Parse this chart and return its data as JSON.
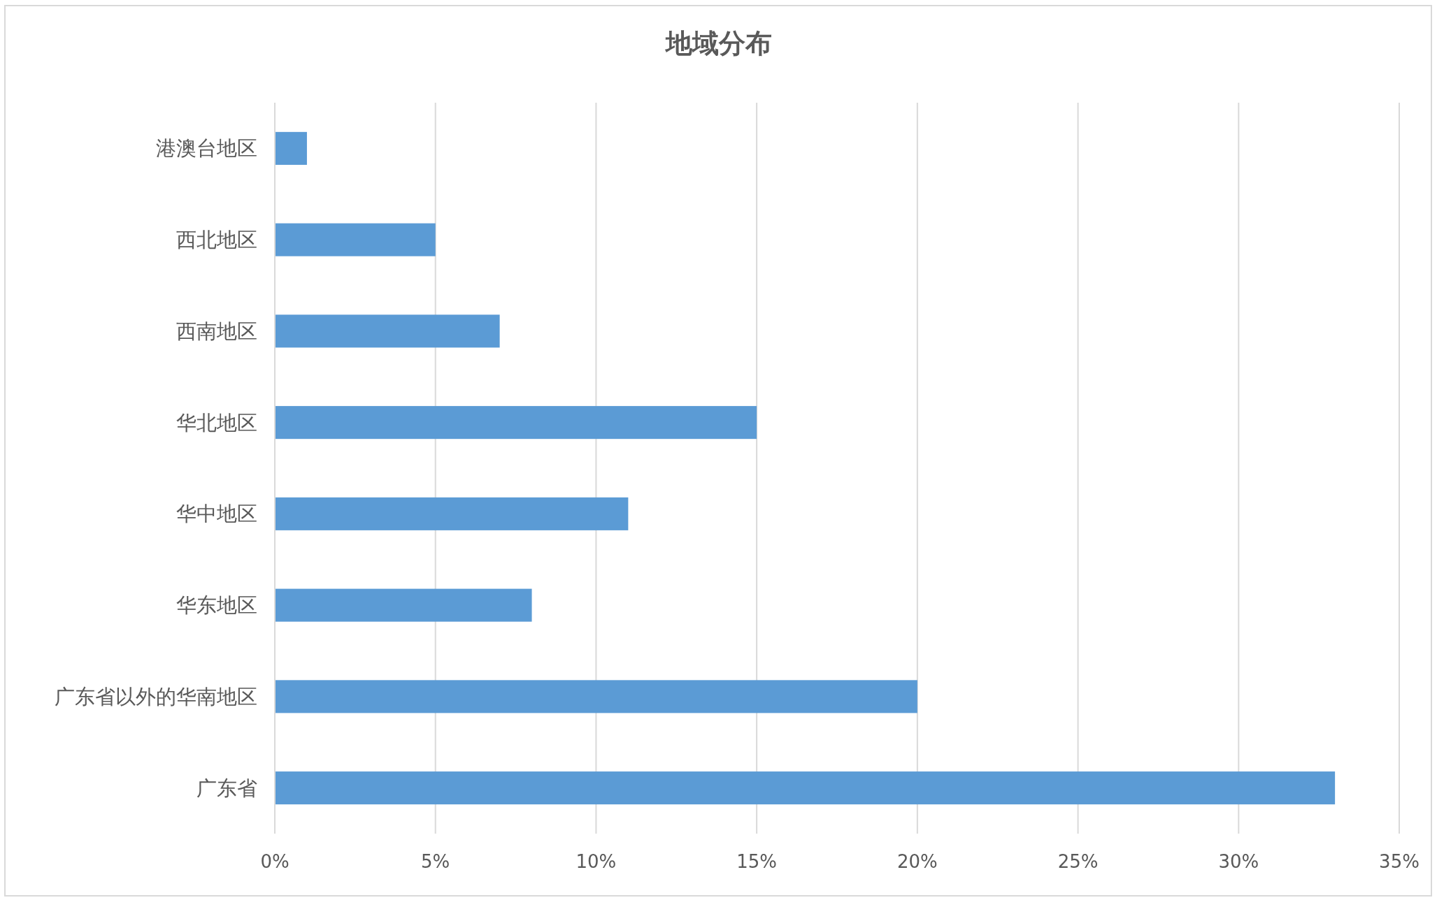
{
  "chart_data": {
    "type": "bar",
    "orientation": "horizontal",
    "title": "地域分布",
    "categories": [
      "港澳台地区",
      "西北地区",
      "西南地区",
      "华北地区",
      "华中地区",
      "华东地区",
      "广东省以外的华南地区",
      "广东省"
    ],
    "values": [
      1,
      5,
      7,
      15,
      11,
      8,
      20,
      33
    ],
    "color": "#5b9bd5",
    "xlim": [
      0,
      35
    ],
    "xticks": [
      {
        "value": 0,
        "label": "0%"
      },
      {
        "value": 5,
        "label": "5%"
      },
      {
        "value": 10,
        "label": "10%"
      },
      {
        "value": 15,
        "label": "15%"
      },
      {
        "value": 20,
        "label": "20%"
      },
      {
        "value": 25,
        "label": "25%"
      },
      {
        "value": 30,
        "label": "30%"
      },
      {
        "value": 35,
        "label": "35%"
      }
    ],
    "grid": "x"
  }
}
